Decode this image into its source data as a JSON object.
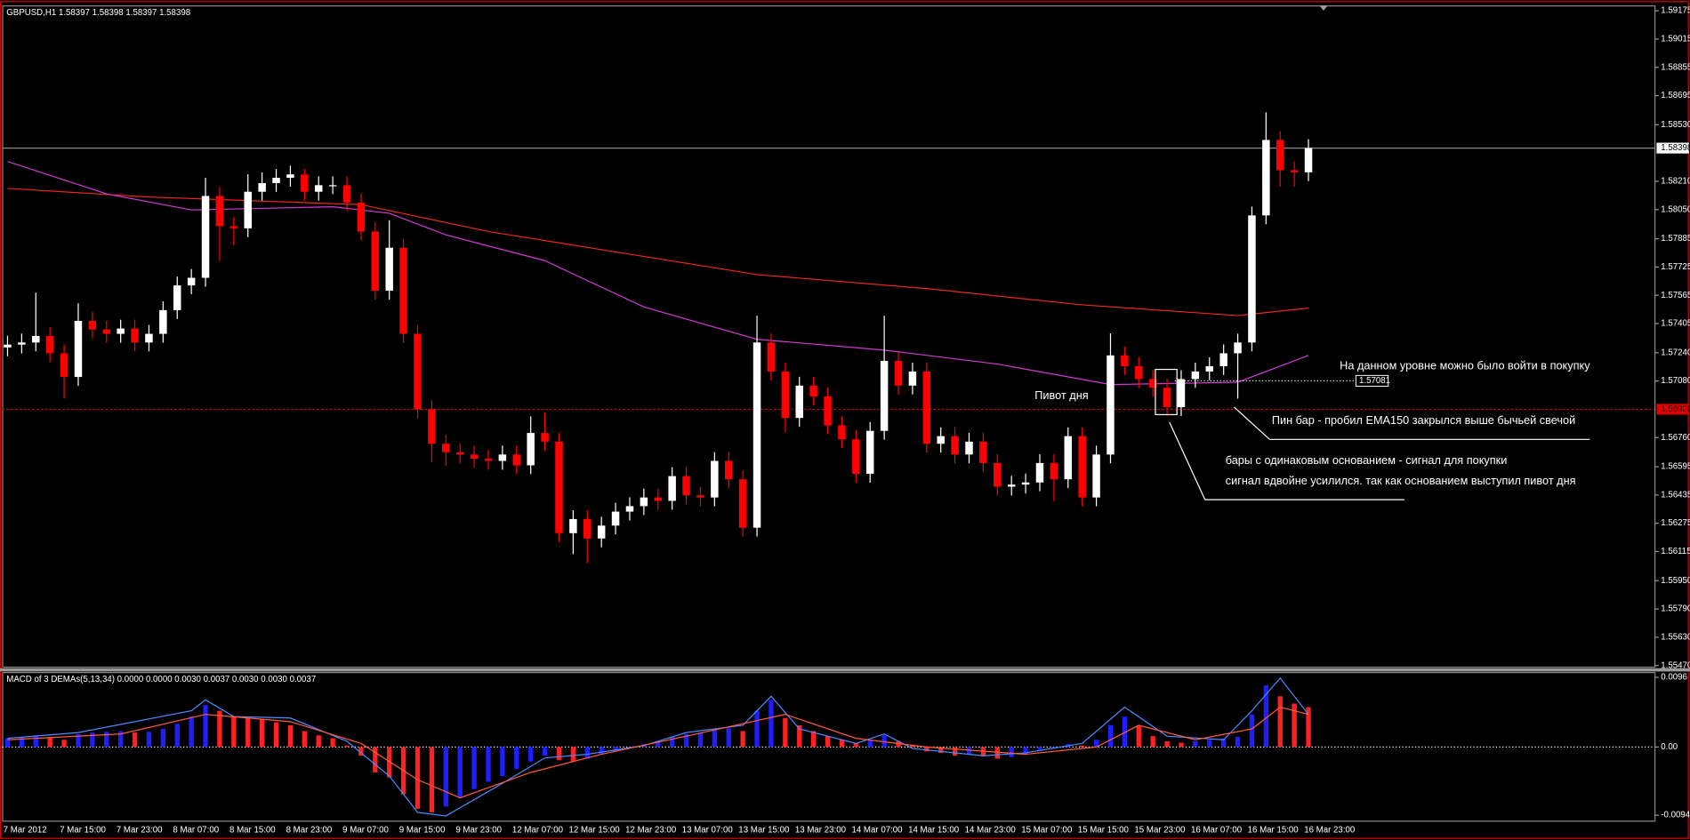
{
  "chart_data": [
    {
      "type": "candlestick",
      "title": "GBPUSD,H1  1.58397 1.58398 1.58397 1.58398",
      "categories": [
        "7 Mar 2012",
        null,
        null,
        null,
        "7 Mar 15:00",
        null,
        null,
        null,
        "7 Mar 23:00",
        null,
        null,
        null,
        "8 Mar 07:00",
        null,
        null,
        null,
        "8 Mar 15:00",
        null,
        null,
        null,
        "8 Mar 23:00",
        null,
        null,
        null,
        "9 Mar 07:00",
        null,
        null,
        null,
        "9 Mar 15:00",
        null,
        null,
        null,
        "9 Mar 23:00",
        null,
        null,
        null,
        "12 Mar 07:00",
        null,
        null,
        null,
        "12 Mar 15:00",
        null,
        null,
        null,
        "12 Mar 23:00",
        null,
        null,
        null,
        "13 Mar 07:00",
        null,
        null,
        null,
        "13 Mar 15:00",
        null,
        null,
        null,
        "13 Mar 23:00",
        null,
        null,
        null,
        "14 Mar 07:00",
        null,
        null,
        null,
        "14 Mar 15:00",
        null,
        null,
        null,
        "14 Mar 23:00",
        null,
        null,
        null,
        "15 Mar 07:00",
        null,
        null,
        null,
        "15 Mar 15:00",
        null,
        null,
        null,
        "15 Mar 23:00",
        null,
        null,
        null,
        "16 Mar 07:00",
        null,
        null,
        null,
        "16 Mar 15:00",
        null,
        null,
        null,
        "16 Mar 23:00"
      ],
      "open": [
        1.5727,
        1.57286,
        1.57298,
        1.57335,
        1.57237,
        1.57103,
        1.5742,
        1.57371,
        1.57347,
        1.57377,
        1.57298,
        1.57347,
        1.57481,
        1.57621,
        1.57664,
        1.58127,
        1.57956,
        1.57944,
        1.58151,
        1.582,
        1.5823,
        1.58249,
        1.58151,
        1.58188,
        1.58188,
        1.5809,
        1.57926,
        1.57591,
        1.57834,
        1.57347,
        1.5692,
        1.56725,
        1.56677,
        1.56664,
        1.5664,
        1.56628,
        1.56664,
        1.56603,
        1.56786,
        1.56737,
        1.56219,
        1.56299,
        1.56189,
        1.56262,
        1.56341,
        1.56372,
        1.56421,
        1.56402,
        1.56542,
        1.56433,
        1.56421,
        1.56628,
        1.56524,
        1.5625,
        1.57298,
        1.57134,
        1.56871,
        1.57054,
        1.56993,
        1.56829,
        1.5675,
        1.56555,
        1.56798,
        1.57194,
        1.57054,
        1.57134,
        1.56725,
        1.56768,
        1.56664,
        1.56737,
        1.56616,
        1.56482,
        1.56494,
        1.56506,
        1.56616,
        1.56524,
        1.56768,
        1.56421,
        1.56664,
        1.57225,
        1.57164,
        1.57091,
        1.57042,
        1.56932,
        1.57091,
        1.57134,
        1.57164,
        1.57237,
        1.57298,
        1.58017,
        1.58444,
        1.58273,
        1.58261
      ],
      "high": [
        1.57336,
        1.57348,
        1.5758,
        1.57385,
        1.57287,
        1.5752,
        1.5747,
        1.57421,
        1.57427,
        1.57427,
        1.57397,
        1.57531,
        1.57671,
        1.57714,
        1.5823,
        1.58177,
        1.58006,
        1.5825,
        1.5826,
        1.5828,
        1.58299,
        1.5828,
        1.58238,
        1.58238,
        1.58238,
        1.5814,
        1.57976,
        1.5799,
        1.57884,
        1.57397,
        1.5697,
        1.56775,
        1.56727,
        1.56714,
        1.5669,
        1.56714,
        1.56714,
        1.5688,
        1.569,
        1.56787,
        1.56349,
        1.56349,
        1.56312,
        1.56391,
        1.56422,
        1.56471,
        1.56471,
        1.56592,
        1.56592,
        1.56483,
        1.56678,
        1.56678,
        1.56574,
        1.5745,
        1.57348,
        1.57184,
        1.57104,
        1.57104,
        1.57043,
        1.56879,
        1.568,
        1.56848,
        1.5745,
        1.57244,
        1.57184,
        1.57184,
        1.56818,
        1.56818,
        1.56787,
        1.56787,
        1.56666,
        1.56544,
        1.56556,
        1.56666,
        1.56666,
        1.56818,
        1.56818,
        1.56714,
        1.5735,
        1.57275,
        1.57214,
        1.57141,
        1.57092,
        1.57141,
        1.57184,
        1.57214,
        1.57287,
        1.57348,
        1.58067,
        1.586,
        1.58494,
        1.58323,
        1.58448
      ],
      "low": [
        1.5722,
        1.57236,
        1.57248,
        1.57187,
        1.5698,
        1.57053,
        1.57321,
        1.57297,
        1.57297,
        1.57248,
        1.57248,
        1.57297,
        1.57431,
        1.57571,
        1.57614,
        1.5776,
        1.5785,
        1.57894,
        1.58101,
        1.5815,
        1.5818,
        1.58101,
        1.58101,
        1.58138,
        1.5804,
        1.57876,
        1.57541,
        1.57541,
        1.57297,
        1.5687,
        1.5662,
        1.566,
        1.56614,
        1.5659,
        1.56578,
        1.56578,
        1.56553,
        1.56553,
        1.56687,
        1.56169,
        1.561,
        1.5605,
        1.56139,
        1.56212,
        1.56291,
        1.56322,
        1.56352,
        1.56352,
        1.56383,
        1.56371,
        1.56371,
        1.56474,
        1.562,
        1.562,
        1.57084,
        1.5679,
        1.56821,
        1.56943,
        1.56779,
        1.567,
        1.56505,
        1.56505,
        1.56748,
        1.57004,
        1.57004,
        1.56675,
        1.56675,
        1.56614,
        1.56614,
        1.56566,
        1.56432,
        1.56432,
        1.56444,
        1.56456,
        1.564,
        1.56474,
        1.56371,
        1.56371,
        1.56614,
        1.57114,
        1.57041,
        1.56992,
        1.56882,
        1.56882,
        1.57041,
        1.57084,
        1.57114,
        1.5698,
        1.57248,
        1.57967,
        1.5818,
        1.5818,
        1.58211
      ],
      "close": [
        1.57286,
        1.57298,
        1.57335,
        1.57237,
        1.57103,
        1.5742,
        1.57371,
        1.57347,
        1.57377,
        1.57298,
        1.57347,
        1.57481,
        1.57621,
        1.57664,
        1.58127,
        1.57956,
        1.57944,
        1.58151,
        1.582,
        1.5823,
        1.58249,
        1.58151,
        1.58188,
        1.58188,
        1.5809,
        1.57926,
        1.57591,
        1.57834,
        1.57347,
        1.5692,
        1.56725,
        1.56677,
        1.56664,
        1.5664,
        1.56628,
        1.56664,
        1.56603,
        1.56786,
        1.56737,
        1.56219,
        1.56299,
        1.56189,
        1.56262,
        1.56341,
        1.56372,
        1.56421,
        1.56402,
        1.56542,
        1.56433,
        1.56421,
        1.56628,
        1.56524,
        1.5625,
        1.57298,
        1.57134,
        1.56871,
        1.57054,
        1.56993,
        1.56829,
        1.5675,
        1.56555,
        1.56798,
        1.57194,
        1.57054,
        1.57134,
        1.56725,
        1.56768,
        1.56664,
        1.56737,
        1.56616,
        1.56482,
        1.56494,
        1.56506,
        1.56616,
        1.56524,
        1.56768,
        1.56421,
        1.56664,
        1.57225,
        1.57164,
        1.57091,
        1.57042,
        1.56932,
        1.57091,
        1.57134,
        1.57164,
        1.57237,
        1.57298,
        1.58017,
        1.58444,
        1.58273,
        1.58261,
        1.58398
      ],
      "up_color": "#ffffff",
      "down_color": "#ff0000",
      "lines": [
        {
          "color": "#e8281e",
          "x": [
            0,
            10,
            25,
            34,
            53,
            65,
            76,
            87,
            92
          ],
          "values": [
            1.5817,
            1.58121,
            1.58078,
            1.57926,
            1.57682,
            1.57603,
            1.57511,
            1.5745,
            1.57493
          ]
        },
        {
          "color": "#d238d2",
          "x": [
            0,
            7,
            13,
            23,
            27,
            31,
            38,
            45,
            53,
            62,
            70,
            78,
            87,
            92
          ],
          "values": [
            1.58322,
            1.58139,
            1.58048,
            1.58066,
            1.58029,
            1.57907,
            1.57761,
            1.57499,
            1.57316,
            1.57255,
            1.57176,
            1.5706,
            1.57073,
            1.57225
          ]
        }
      ],
      "current_price": 1.58398,
      "pivot": {
        "value": 1.5692,
        "label": "1.56920"
      },
      "level": 1.57081,
      "ylim": [
        1.5547,
        1.59175
      ],
      "yticks": [
        1.59175,
        1.59015,
        1.58855,
        1.58695,
        {
          "value": 1.5853,
          "label": "1.58530"
        },
        {
          "value": 1.5821,
          "label": "1.58210"
        },
        {
          "value": 1.5805,
          "label": "1.58050"
        },
        1.57885,
        1.57725,
        1.57565,
        1.57405,
        {
          "value": 1.5724,
          "label": "1.57240"
        },
        {
          "value": 1.5708,
          "label": "1.57080"
        },
        {
          "value": 1.5676,
          "label": "1.56760"
        },
        1.56595,
        1.56435,
        1.56275,
        1.56115,
        {
          "value": 1.5595,
          "label": "1.55950"
        },
        {
          "value": 1.5579,
          "label": "1.55790"
        },
        {
          "value": 1.5563,
          "label": "1.55630"
        },
        {
          "value": 1.5547,
          "label": "1.55470"
        }
      ],
      "annotations": [
        "Пивот дня",
        "На данном уровне можно было войти в покупку",
        "Пин бар - пробил EMA150 закрылся выше бычьей свечой",
        "бары с одинаковым основанием - сигнал для покупки",
        "сигнал вдвойне усилился. так как основанием выступил пивот дня"
      ]
    },
    {
      "type": "bar",
      "title": "MACD of 3 DEMAs(5,13,34) 0.0000 0.0000 0.0030 0.0037 0.0030 0.0030 0.0037",
      "values": [
        0.0012,
        0.0014,
        0.0016,
        0.0013,
        0.001,
        0.0018,
        0.002,
        0.0021,
        0.0022,
        0.002,
        0.0021,
        0.0025,
        0.0032,
        0.0042,
        0.0058,
        0.005,
        0.0042,
        0.004,
        0.0038,
        0.0034,
        0.003,
        0.0022,
        0.0016,
        0.0012,
        0.0002,
        -0.0012,
        -0.0035,
        -0.0042,
        -0.0065,
        -0.0085,
        -0.009,
        -0.0082,
        -0.007,
        -0.0058,
        -0.0048,
        -0.004,
        -0.003,
        -0.002,
        -0.0012,
        -0.0018,
        -0.002,
        -0.0016,
        -0.001,
        -0.0006,
        -0.0002,
        0.0004,
        0.0008,
        0.0014,
        0.0018,
        0.002,
        0.0024,
        0.0026,
        0.0022,
        0.005,
        0.0065,
        0.004,
        0.003,
        0.0022,
        0.0015,
        0.001,
        0.0006,
        0.001,
        0.0016,
        0.0008,
        0.0002,
        -0.0006,
        -0.0008,
        -0.0012,
        -0.001,
        -0.0013,
        -0.0016,
        -0.0014,
        -0.001,
        -0.0004,
        -0.0002,
        0.0004,
        0.0002,
        0.001,
        0.003,
        0.0042,
        0.003,
        0.0015,
        0.0008,
        0.0006,
        0.0008,
        0.001,
        0.0012,
        0.0014,
        0.0045,
        0.0085,
        0.007,
        0.006,
        0.0055
      ],
      "up_color": "#1e1eff",
      "down_color": "#ff2020",
      "lines": [
        {
          "color": "#4a8cff",
          "x": [
            0,
            5,
            13,
            14,
            16,
            20,
            24,
            27,
            29,
            31,
            35,
            38,
            41,
            45,
            48,
            52,
            54,
            56,
            60,
            62,
            64,
            69,
            72,
            76,
            79,
            82,
            86,
            88,
            90,
            92
          ],
          "values": [
            0.0012,
            0.002,
            0.005,
            0.0065,
            0.0042,
            0.004,
            0.0008,
            -0.004,
            -0.009,
            -0.0095,
            -0.005,
            -0.0015,
            -0.001,
            0.0002,
            0.002,
            0.003,
            0.007,
            0.0025,
            0.0005,
            0.0018,
            -0.0002,
            -0.0012,
            -0.0008,
            0.0005,
            0.0055,
            0.0015,
            0.001,
            0.005,
            0.0095,
            0.0045
          ]
        },
        {
          "color": "#ff5a3c",
          "x": [
            0,
            8,
            14,
            20,
            25,
            29,
            32,
            37,
            42,
            48,
            55,
            60,
            65,
            72,
            77,
            80,
            84,
            88,
            90,
            92
          ],
          "values": [
            0.001,
            0.0018,
            0.0045,
            0.0035,
            0.0005,
            -0.0045,
            -0.007,
            -0.0035,
            -0.001,
            0.0015,
            0.0045,
            0.0012,
            0,
            -0.001,
            0,
            0.003,
            0.001,
            0.0025,
            0.0055,
            0.0045
          ]
        }
      ],
      "ylim": [
        -0.0094,
        0.0096
      ],
      "yticks": [
        0.0096,
        {
          "value": 0,
          "label": "0.00"
        },
        -0.0094
      ]
    }
  ]
}
